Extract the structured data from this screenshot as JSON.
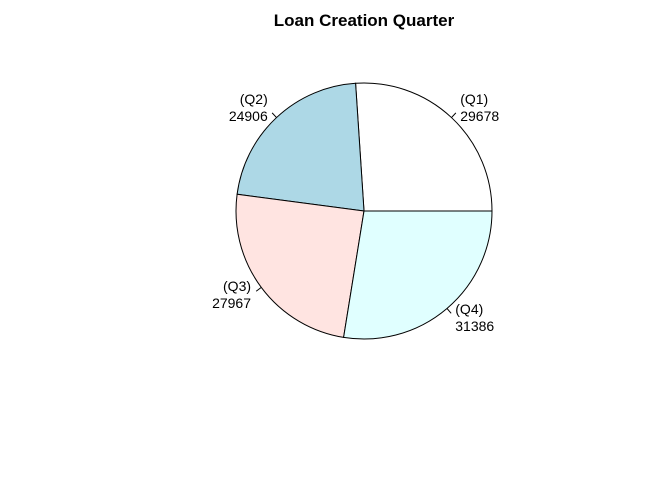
{
  "chart_data": {
    "type": "pie",
    "title": "Loan Creation Quarter",
    "slices": [
      {
        "category": "(Q1)",
        "value": 29678,
        "value_label": "29678",
        "color": "#FFFFFF"
      },
      {
        "category": "(Q2)",
        "value": 24906,
        "value_label": "24906",
        "color": "#ADD8E6"
      },
      {
        "category": "(Q3)",
        "value": 27967,
        "value_label": "27967",
        "color": "#FFE4E1"
      },
      {
        "category": "(Q4)",
        "value": 31386,
        "value_label": "31386",
        "color": "#E0FFFF"
      }
    ],
    "start_angle_deg": 0,
    "direction": "counterclockwise",
    "legend": "none"
  }
}
